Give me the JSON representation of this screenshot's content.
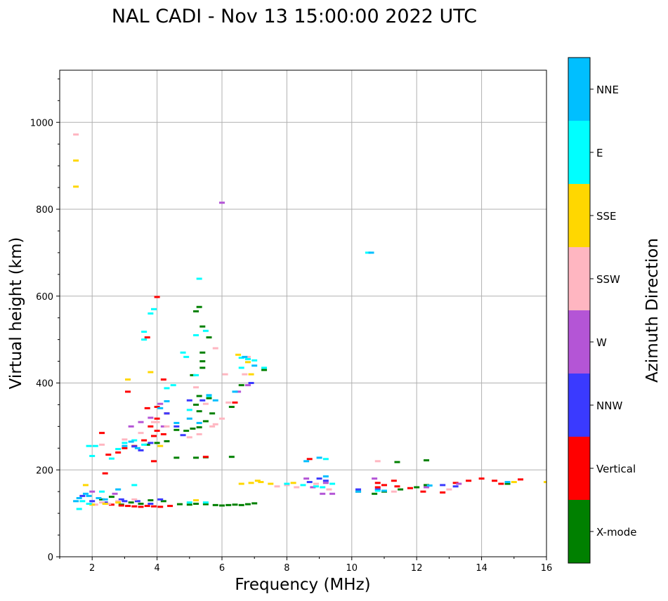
{
  "chart_data": {
    "type": "scatter",
    "title": "NAL CADI - Nov 13 15:00:00 2022 UTC",
    "xlabel": "Frequency (MHz)",
    "ylabel": "Virtual height (km)",
    "xlim": [
      1,
      16
    ],
    "ylim": [
      0,
      1120
    ],
    "xticks": [
      2,
      4,
      6,
      8,
      10,
      12,
      14,
      16
    ],
    "yticks": [
      0,
      200,
      400,
      600,
      800,
      1000
    ],
    "grid": true,
    "colorbar": {
      "label": "Azimuth Direction",
      "categories": [
        {
          "name": "X-mode",
          "color": "#008000"
        },
        {
          "name": "Vertical",
          "color": "#ff0000"
        },
        {
          "name": "NNW",
          "color": "#3a3aff"
        },
        {
          "name": "W",
          "color": "#b455d6"
        },
        {
          "name": "SSW",
          "color": "#ffb6c1"
        },
        {
          "name": "SSE",
          "color": "#ffd700"
        },
        {
          "name": "E",
          "color": "#00ffff"
        },
        {
          "name": "NNE",
          "color": "#00bfff"
        }
      ]
    },
    "series": [
      {
        "name": "X-mode",
        "points": [
          [
            2.3,
            132
          ],
          [
            2.6,
            138
          ],
          [
            2.9,
            120
          ],
          [
            3.2,
            125
          ],
          [
            3.5,
            122
          ],
          [
            3.8,
            130
          ],
          [
            4.2,
            128
          ],
          [
            4.7,
            121
          ],
          [
            5.0,
            120
          ],
          [
            5.2,
            122
          ],
          [
            5.5,
            121
          ],
          [
            5.8,
            119
          ],
          [
            6.0,
            118
          ],
          [
            6.2,
            119
          ],
          [
            6.4,
            120
          ],
          [
            6.6,
            119
          ],
          [
            6.8,
            121
          ],
          [
            7.0,
            123
          ],
          [
            3.7,
            258
          ],
          [
            4.0,
            262
          ],
          [
            4.3,
            266
          ],
          [
            4.6,
            292
          ],
          [
            4.9,
            290
          ],
          [
            5.1,
            295
          ],
          [
            5.3,
            298
          ],
          [
            5.5,
            312
          ],
          [
            5.2,
            228
          ],
          [
            5.5,
            229
          ],
          [
            6.3,
            230
          ],
          [
            4.6,
            228
          ],
          [
            5.3,
            335
          ],
          [
            5.2,
            350
          ],
          [
            5.3,
            370
          ],
          [
            5.6,
            365
          ],
          [
            5.7,
            330
          ],
          [
            5.1,
            418
          ],
          [
            5.4,
            435
          ],
          [
            5.4,
            450
          ],
          [
            5.4,
            470
          ],
          [
            5.6,
            505
          ],
          [
            5.4,
            530
          ],
          [
            5.3,
            575
          ],
          [
            5.2,
            565
          ],
          [
            6.3,
            345
          ],
          [
            6.6,
            395
          ],
          [
            7.3,
            430
          ],
          [
            10.7,
            145
          ],
          [
            11.0,
            150
          ],
          [
            11.5,
            155
          ],
          [
            12.0,
            160
          ],
          [
            12.3,
            165
          ],
          [
            14.8,
            168
          ],
          [
            11.4,
            218
          ],
          [
            12.3,
            222
          ],
          [
            10.2,
            150
          ]
        ]
      },
      {
        "name": "Vertical",
        "points": [
          [
            2.6,
            120
          ],
          [
            2.9,
            118
          ],
          [
            3.1,
            117
          ],
          [
            3.3,
            116
          ],
          [
            3.5,
            115
          ],
          [
            3.7,
            117
          ],
          [
            3.9,
            116
          ],
          [
            4.1,
            115
          ],
          [
            4.4,
            117
          ],
          [
            2.4,
            192
          ],
          [
            2.5,
            235
          ],
          [
            2.8,
            240
          ],
          [
            3.0,
            250
          ],
          [
            3.3,
            255
          ],
          [
            3.6,
            268
          ],
          [
            3.9,
            278
          ],
          [
            4.0,
            290
          ],
          [
            4.2,
            282
          ],
          [
            3.9,
            220
          ],
          [
            3.8,
            300
          ],
          [
            4.0,
            318
          ],
          [
            4.0,
            345
          ],
          [
            3.7,
            342
          ],
          [
            4.3,
            330
          ],
          [
            4.2,
            408
          ],
          [
            3.7,
            505
          ],
          [
            4.0,
            598
          ],
          [
            6.4,
            355
          ],
          [
            10.8,
            160
          ],
          [
            11.0,
            165
          ],
          [
            11.4,
            162
          ],
          [
            11.8,
            158
          ],
          [
            12.2,
            150
          ],
          [
            12.8,
            148
          ],
          [
            13.2,
            170
          ],
          [
            13.6,
            175
          ],
          [
            14.0,
            180
          ],
          [
            14.4,
            175
          ],
          [
            14.6,
            168
          ],
          [
            15.2,
            178
          ],
          [
            8.7,
            225
          ],
          [
            10.8,
            170
          ],
          [
            11.3,
            175
          ],
          [
            2.3,
            285
          ],
          [
            3.1,
            380
          ],
          [
            5.5,
            230
          ]
        ]
      },
      {
        "name": "NNW",
        "points": [
          [
            1.7,
            140
          ],
          [
            2.0,
            128
          ],
          [
            2.4,
            125
          ],
          [
            2.9,
            132
          ],
          [
            3.4,
            128
          ],
          [
            3.8,
            122
          ],
          [
            4.1,
            132
          ],
          [
            3.5,
            245
          ],
          [
            3.8,
            262
          ],
          [
            3.3,
            254
          ],
          [
            4.3,
            330
          ],
          [
            4.6,
            300
          ],
          [
            4.8,
            280
          ],
          [
            5.0,
            360
          ],
          [
            5.4,
            360
          ],
          [
            6.9,
            400
          ],
          [
            6.8,
            455
          ],
          [
            9.0,
            180
          ],
          [
            9.2,
            175
          ],
          [
            8.7,
            172
          ],
          [
            10.2,
            155
          ],
          [
            13.2,
            162
          ],
          [
            10.8,
            155
          ],
          [
            12.8,
            165
          ],
          [
            3.0,
            128
          ]
        ]
      },
      {
        "name": "W",
        "points": [
          [
            2.0,
            150
          ],
          [
            2.7,
            145
          ],
          [
            3.2,
            300
          ],
          [
            3.5,
            310
          ],
          [
            3.8,
            320
          ],
          [
            4.2,
            300
          ],
          [
            4.1,
            352
          ],
          [
            6.5,
            380
          ],
          [
            6.8,
            395
          ],
          [
            8.8,
            160
          ],
          [
            9.1,
            145
          ],
          [
            9.4,
            145
          ],
          [
            9.2,
            170
          ],
          [
            8.6,
            180
          ],
          [
            10.7,
            180
          ],
          [
            6.0,
            815
          ],
          [
            12.3,
            160
          ],
          [
            13.3,
            168
          ]
        ]
      },
      {
        "name": "SSW",
        "points": [
          [
            1.5,
            972
          ],
          [
            2.1,
            120
          ],
          [
            2.3,
            125
          ],
          [
            2.5,
            122
          ],
          [
            2.8,
            128
          ],
          [
            3.3,
            132
          ],
          [
            3.0,
            270
          ],
          [
            3.5,
            285
          ],
          [
            3.9,
            310
          ],
          [
            4.3,
            300
          ],
          [
            5.0,
            275
          ],
          [
            5.3,
            282
          ],
          [
            5.7,
            300
          ],
          [
            5.8,
            305
          ],
          [
            6.0,
            318
          ],
          [
            5.2,
            390
          ],
          [
            5.8,
            480
          ],
          [
            6.1,
            420
          ],
          [
            6.2,
            355
          ],
          [
            6.7,
            420
          ],
          [
            6.8,
            460
          ],
          [
            7.7,
            162
          ],
          [
            8.0,
            165
          ],
          [
            8.3,
            160
          ],
          [
            8.9,
            168
          ],
          [
            9.3,
            155
          ],
          [
            10.8,
            220
          ],
          [
            11.3,
            150
          ],
          [
            13.0,
            155
          ],
          [
            2.3,
            258
          ],
          [
            4.0,
            310
          ],
          [
            5.5,
            352
          ]
        ]
      },
      {
        "name": "SSE",
        "points": [
          [
            1.5,
            912
          ],
          [
            1.5,
            852
          ],
          [
            1.8,
            165
          ],
          [
            2.0,
            120
          ],
          [
            2.4,
            122
          ],
          [
            2.8,
            125
          ],
          [
            3.1,
            408
          ],
          [
            3.8,
            425
          ],
          [
            4.1,
            255
          ],
          [
            6.5,
            465
          ],
          [
            6.8,
            448
          ],
          [
            6.9,
            420
          ],
          [
            7.1,
            175
          ],
          [
            7.5,
            168
          ],
          [
            8.2,
            170
          ],
          [
            6.6,
            168
          ],
          [
            6.9,
            170
          ],
          [
            7.2,
            172
          ],
          [
            15.0,
            172
          ],
          [
            16.0,
            172
          ],
          [
            5.2,
            130
          ]
        ]
      },
      {
        "name": "E",
        "points": [
          [
            1.6,
            110
          ],
          [
            1.7,
            128
          ],
          [
            1.9,
            122
          ],
          [
            1.9,
            255
          ],
          [
            2.0,
            232
          ],
          [
            2.1,
            255
          ],
          [
            2.3,
            150
          ],
          [
            2.6,
            226
          ],
          [
            2.8,
            248
          ],
          [
            3.0,
            262
          ],
          [
            3.3,
            268
          ],
          [
            3.6,
            258
          ],
          [
            3.8,
            560
          ],
          [
            3.6,
            518
          ],
          [
            3.6,
            500
          ],
          [
            3.9,
            570
          ],
          [
            4.3,
            388
          ],
          [
            4.5,
            395
          ],
          [
            4.8,
            470
          ],
          [
            4.9,
            460
          ],
          [
            5.2,
            510
          ],
          [
            5.0,
            338
          ],
          [
            5.6,
            370
          ],
          [
            5.2,
            418
          ],
          [
            5.3,
            640
          ],
          [
            5.5,
            520
          ],
          [
            6.6,
            435
          ],
          [
            6.8,
            455
          ],
          [
            7.0,
            452
          ],
          [
            7.3,
            435
          ],
          [
            8.0,
            168
          ],
          [
            8.5,
            165
          ],
          [
            8.9,
            162
          ],
          [
            9.1,
            160
          ],
          [
            9.4,
            168
          ],
          [
            9.2,
            225
          ],
          [
            10.5,
            700
          ],
          [
            10.8,
            152
          ],
          [
            6.6,
            458
          ],
          [
            5.0,
            125
          ],
          [
            5.5,
            125
          ],
          [
            3.3,
            165
          ]
        ]
      },
      {
        "name": "NNE",
        "points": [
          [
            1.5,
            128
          ],
          [
            1.6,
            135
          ],
          [
            1.8,
            145
          ],
          [
            1.9,
            140
          ],
          [
            2.2,
            135
          ],
          [
            2.4,
            132
          ],
          [
            2.8,
            155
          ],
          [
            3.0,
            255
          ],
          [
            3.2,
            265
          ],
          [
            3.4,
            250
          ],
          [
            4.1,
            342
          ],
          [
            4.3,
            358
          ],
          [
            4.6,
            308
          ],
          [
            5.0,
            318
          ],
          [
            5.3,
            308
          ],
          [
            5.6,
            372
          ],
          [
            6.7,
            460
          ],
          [
            7.0,
            440
          ],
          [
            8.6,
            220
          ],
          [
            9.0,
            228
          ],
          [
            9.2,
            185
          ],
          [
            10.2,
            150
          ],
          [
            10.6,
            700
          ],
          [
            11.0,
            152
          ],
          [
            12.4,
            164
          ],
          [
            14.8,
            172
          ],
          [
            6.4,
            380
          ],
          [
            5.8,
            360
          ]
        ]
      }
    ]
  }
}
